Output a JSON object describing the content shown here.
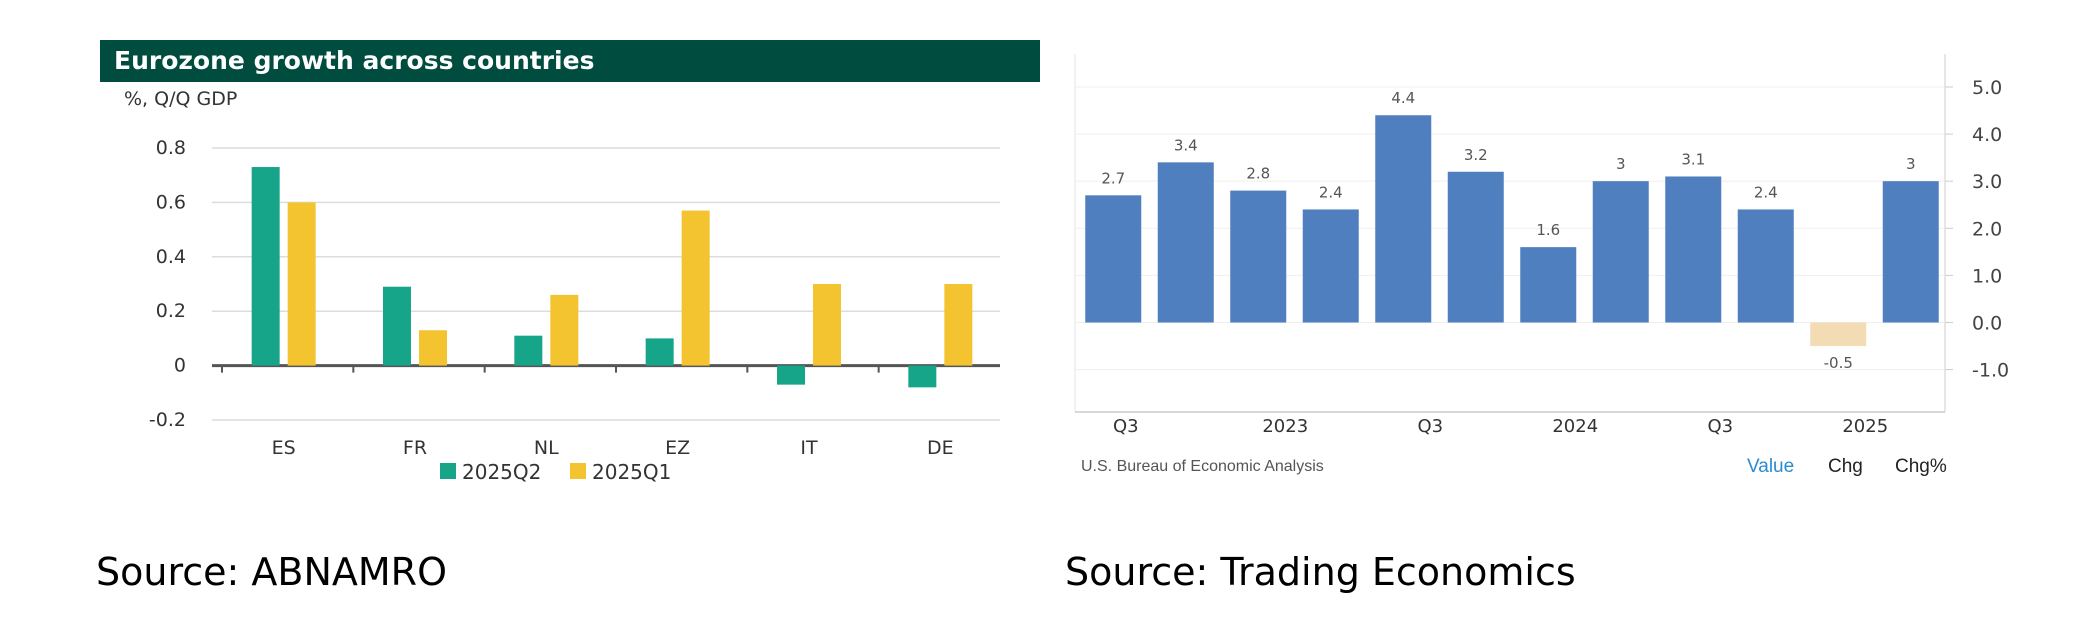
{
  "chart_data": [
    {
      "type": "bar",
      "title": "Eurozone growth across countries",
      "ylabel": "%, Q/Q GDP",
      "xlabel": "",
      "categories": [
        "ES",
        "FR",
        "NL",
        "EZ",
        "IT",
        "DE"
      ],
      "series": [
        {
          "name": "2025Q2",
          "values": [
            0.73,
            0.29,
            0.11,
            0.1,
            -0.07,
            -0.08
          ],
          "color": "#17a589"
        },
        {
          "name": "2025Q1",
          "values": [
            0.6,
            0.13,
            0.26,
            0.57,
            0.3,
            0.3
          ],
          "color": "#f4c430"
        }
      ],
      "ylim": [
        -0.2,
        0.8
      ],
      "yticks": [
        "0.8",
        "0.6",
        "0.4",
        "0.2",
        "0",
        "-0.2"
      ],
      "ytick_values": [
        0.8,
        0.6,
        0.4,
        0.2,
        0,
        -0.2
      ],
      "grid": true,
      "legend": "bottom-center"
    },
    {
      "type": "bar",
      "values": [
        2.7,
        3.4,
        2.8,
        2.4,
        4.4,
        3.2,
        1.6,
        3,
        3.1,
        2.4,
        -0.5,
        3
      ],
      "data_labels": [
        "2.7",
        "3.4",
        "2.8",
        "2.4",
        "4.4",
        "3.2",
        "1.6",
        "3",
        "3.1",
        "2.4",
        "-0.5",
        "3"
      ],
      "x_tick_labels": [
        {
          "label": "Q3",
          "index": 0.2
        },
        {
          "label": "2023",
          "index": 2.4
        },
        {
          "label": "Q3",
          "index": 4.4
        },
        {
          "label": "2024",
          "index": 6.4
        },
        {
          "label": "Q3",
          "index": 8.4
        },
        {
          "label": "2025",
          "index": 10.4
        }
      ],
      "yticks": [
        "5.0",
        "4.0",
        "3.0",
        "2.0",
        "1.0",
        "0.0",
        "-1.0"
      ],
      "ytick_values": [
        5,
        4,
        3,
        2,
        1,
        0,
        -1
      ],
      "ylim": [
        -1.9,
        5.7
      ],
      "positive_color": "#4f7fbf",
      "negative_color": "#f3dcb4",
      "grid": true,
      "y_axis_side": "right"
    }
  ],
  "footer": {
    "credit": "U.S. Bureau of Economic Analysis",
    "tabs": [
      "Value",
      "Chg",
      "Chg%"
    ],
    "active_tab": "Value"
  },
  "sources": {
    "left": "Source: ABNAMRO",
    "right": "Source: Trading Economics"
  }
}
